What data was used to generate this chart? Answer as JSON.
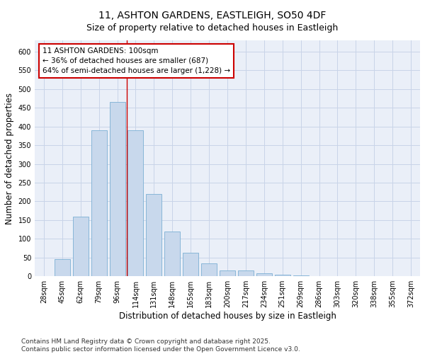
{
  "title": "11, ASHTON GARDENS, EASTLEIGH, SO50 4DF",
  "subtitle": "Size of property relative to detached houses in Eastleigh",
  "xlabel": "Distribution of detached houses by size in Eastleigh",
  "ylabel": "Number of detached properties",
  "categories": [
    "28sqm",
    "45sqm",
    "62sqm",
    "79sqm",
    "96sqm",
    "114sqm",
    "131sqm",
    "148sqm",
    "165sqm",
    "183sqm",
    "200sqm",
    "217sqm",
    "234sqm",
    "251sqm",
    "269sqm",
    "286sqm",
    "303sqm",
    "320sqm",
    "338sqm",
    "355sqm",
    "372sqm"
  ],
  "values": [
    0,
    45,
    160,
    390,
    465,
    390,
    220,
    120,
    63,
    35,
    15,
    15,
    8,
    5,
    2,
    0,
    0,
    0,
    0,
    0,
    0
  ],
  "bar_color": "#c8d8ec",
  "bar_edge_color": "#7bafd4",
  "grid_color": "#c8d4e8",
  "background_color": "#eaeff8",
  "vline_x": 4.5,
  "vline_color": "#cc0000",
  "annotation_title": "11 ASHTON GARDENS: 100sqm",
  "annotation_line2": "← 36% of detached houses are smaller (687)",
  "annotation_line3": "64% of semi-detached houses are larger (1,228) →",
  "annotation_box_color": "#ffffff",
  "annotation_border_color": "#cc0000",
  "ylim": [
    0,
    630
  ],
  "yticks": [
    0,
    50,
    100,
    150,
    200,
    250,
    300,
    350,
    400,
    450,
    500,
    550,
    600
  ],
  "footer_line1": "Contains HM Land Registry data © Crown copyright and database right 2025.",
  "footer_line2": "Contains public sector information licensed under the Open Government Licence v3.0.",
  "title_fontsize": 10,
  "subtitle_fontsize": 9,
  "axis_label_fontsize": 8.5,
  "tick_fontsize": 7,
  "annotation_fontsize": 7.5,
  "footer_fontsize": 6.5
}
